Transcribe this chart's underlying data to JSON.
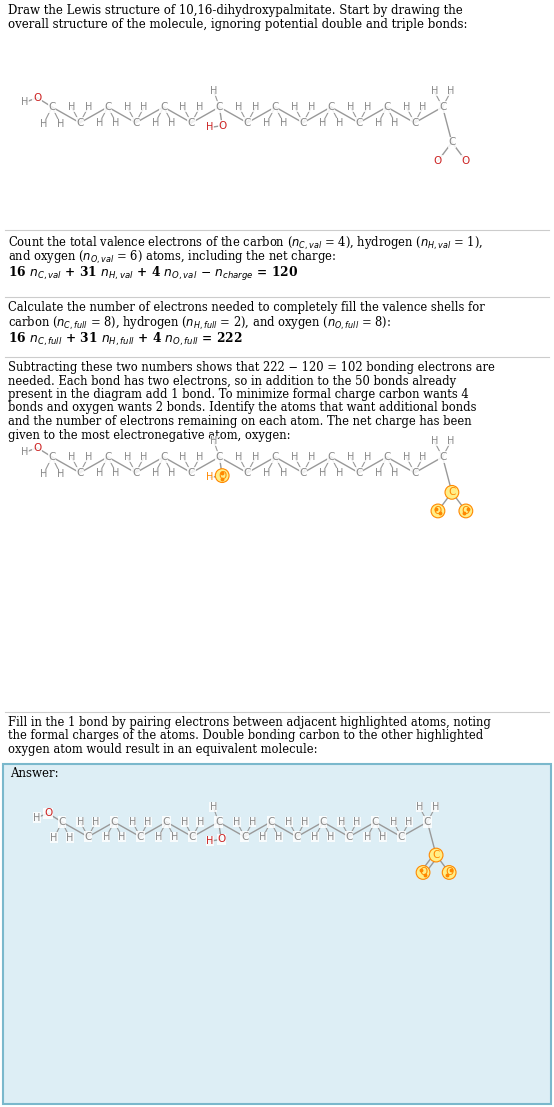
{
  "bg_color": "#ffffff",
  "text_color": "#000000",
  "gc": "#888888",
  "gh": "#888888",
  "go_red": "#cc2222",
  "go_orange": "#ff8800",
  "gc_orange": "#ff8800",
  "bond_color": "#999999",
  "answer_bg": "#ddeef5",
  "answer_border": "#7ab8cc",
  "title_lines": [
    "Draw the Lewis structure of 10,16-dihydroxypalmitate. Start by drawing the",
    "overall structure of the molecule, ignoring potential double and triple bonds:"
  ],
  "s2_lines": [
    "Count the total valence electrons of the carbon ($n_{C,val}$ = 4), hydrogen ($n_{H,val}$ = 1),",
    "and oxygen ($n_{O,val}$ = 6) atoms, including the net charge:"
  ],
  "s2_eq": "16 $n_{C,val}$ + 31 $n_{H,val}$ + 4 $n_{O,val}$ $-$ $n_{charge}$ = 120",
  "s3_lines": [
    "Calculate the number of electrons needed to completely fill the valence shells for",
    "carbon ($n_{C,full}$ = 8), hydrogen ($n_{H,full}$ = 2), and oxygen ($n_{O,full}$ = 8):"
  ],
  "s3_eq": "16 $n_{C,full}$ + 31 $n_{H,full}$ + 4 $n_{O,full}$ = 222",
  "s4_lines": [
    "Subtracting these two numbers shows that 222 − 120 = 102 bonding electrons are",
    "needed. Each bond has two electrons, so in addition to the 50 bonds already",
    "present in the diagram add 1 bond. To minimize formal charge carbon wants 4",
    "bonds and oxygen wants 2 bonds. Identify the atoms that want additional bonds",
    "and the number of electrons remaining on each atom. The net charge has been",
    "given to the most electronegative atom, oxygen:"
  ],
  "s5_lines": [
    "Fill in the 1 bond by pairing electrons between adjacent highlighted atoms, noting",
    "the formal charges of the atoms. Double bonding carbon to the other highlighted",
    "oxygen atom would result in an equivalent molecule:"
  ],
  "answer_label": "Answer:"
}
